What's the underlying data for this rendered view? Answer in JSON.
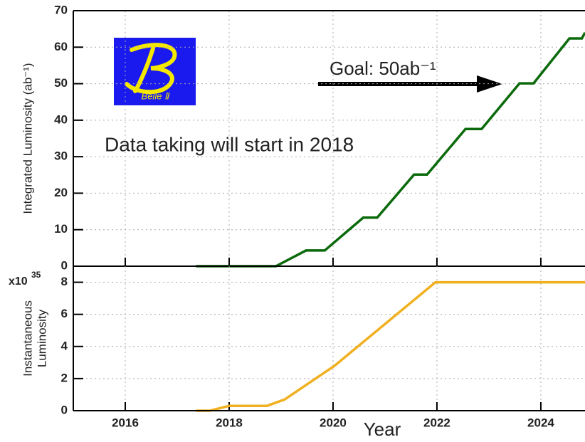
{
  "chart_data": [
    {
      "type": "line",
      "ylabel": "Integrated Luminosity (ab⁻¹)",
      "x": [
        2017.36,
        2018.9,
        2019.48,
        2019.84,
        2020.58,
        2020.85,
        2021.56,
        2021.81,
        2022.55,
        2022.86,
        2023.59,
        2023.86,
        2024.55,
        2024.79,
        2024.85
      ],
      "values": [
        0,
        0,
        4.3,
        4.3,
        13.3,
        13.3,
        25.1,
        25.1,
        37.6,
        37.6,
        50.1,
        50.1,
        62.4,
        62.4,
        64
      ],
      "color": "#0b6a0b",
      "xlim": [
        2015,
        2024.85
      ],
      "xticks": [
        2016,
        2018,
        2020,
        2022,
        2024
      ],
      "ylim": [
        0,
        70
      ],
      "yticks": [
        0,
        10,
        20,
        30,
        40,
        50,
        60,
        70
      ],
      "grid": true,
      "annotations": [
        "Goal: 50ab⁻¹",
        "Data taking will start in 2018"
      ],
      "logo": "Belle Ⅱ"
    },
    {
      "type": "line",
      "ylabel": [
        "Instantaneous",
        "Luminosity"
      ],
      "xlabel": "Year",
      "y_multiplier": {
        "base": "x10",
        "exponent": "35"
      },
      "x": [
        2017.36,
        2017.63,
        2018.0,
        2018.73,
        2019.07,
        2019.62,
        2020.03,
        2021.97,
        2024.85
      ],
      "values": [
        0,
        0,
        0.3,
        0.3,
        0.7,
        1.9,
        2.8,
        8,
        8
      ],
      "color": "#f0b020",
      "xlim": [
        2015,
        2024.85
      ],
      "xticks": [
        2016,
        2018,
        2020,
        2022,
        2024
      ],
      "ylim": [
        0,
        9
      ],
      "yticks": [
        0,
        2,
        4,
        6,
        8
      ],
      "grid": true
    }
  ]
}
